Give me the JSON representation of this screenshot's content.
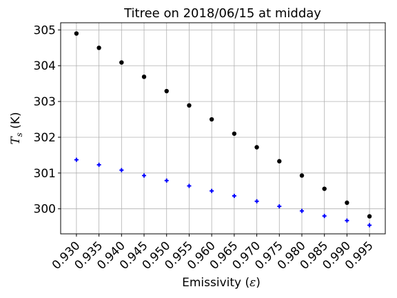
{
  "chart_data": {
    "type": "scatter",
    "title": "Titree on 2018/06/15 at midday",
    "xlabel_text": "Emissivity (",
    "xlabel_symbol": "ε",
    "xlabel_close": ")",
    "ylabel_symbol": "T",
    "ylabel_subscript": "s",
    "ylabel_unit": " (K)",
    "x": [
      0.93,
      0.935,
      0.94,
      0.945,
      0.95,
      0.955,
      0.96,
      0.965,
      0.97,
      0.975,
      0.98,
      0.985,
      0.99,
      0.995
    ],
    "x_tick_labels": [
      "0.930",
      "0.935",
      "0.940",
      "0.945",
      "0.950",
      "0.955",
      "0.960",
      "0.965",
      "0.970",
      "0.975",
      "0.980",
      "0.985",
      "0.990",
      "0.995"
    ],
    "y_ticks": [
      300,
      301,
      302,
      303,
      304,
      305
    ],
    "y_tick_labels": [
      "300",
      "301",
      "302",
      "303",
      "304",
      "305"
    ],
    "xlim": [
      0.9265,
      0.9985
    ],
    "ylim": [
      299.3,
      305.2
    ],
    "grid": true,
    "series": [
      {
        "color": "#000000",
        "marker": "circle",
        "values": [
          304.9,
          304.5,
          304.09,
          303.69,
          303.29,
          302.89,
          302.5,
          302.1,
          301.72,
          301.33,
          300.93,
          300.56,
          300.17,
          299.79
        ]
      },
      {
        "color": "#0000ff",
        "marker": "plus",
        "values": [
          301.37,
          301.23,
          301.08,
          300.93,
          300.79,
          300.64,
          300.5,
          300.36,
          300.21,
          300.07,
          299.94,
          299.8,
          299.67,
          299.54
        ]
      }
    ]
  }
}
